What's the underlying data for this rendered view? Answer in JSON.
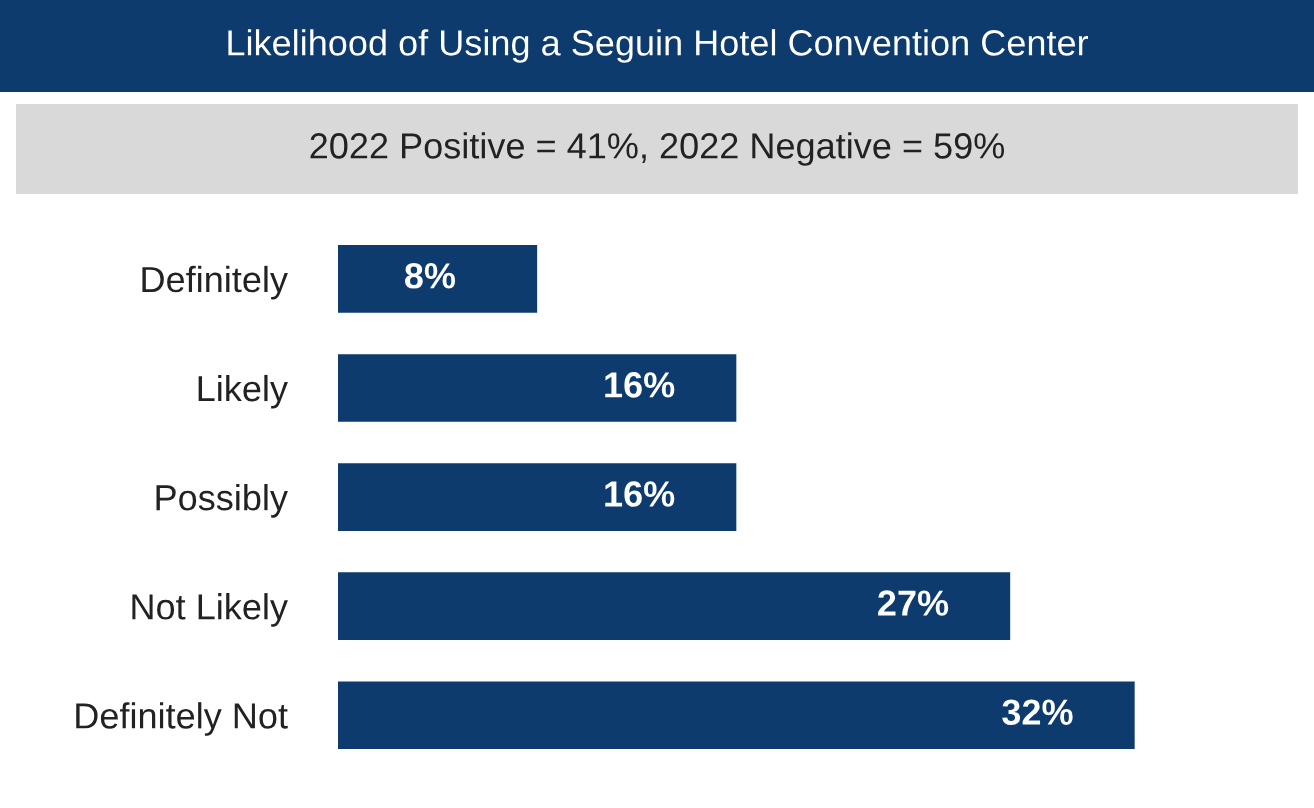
{
  "chart_data": {
    "type": "bar",
    "orientation": "horizontal",
    "title": "Likelihood of Using a Seguin Hotel Convention Center",
    "subtitle": "2022 Positive = 41%, 2022 Negative = 59%",
    "categories": [
      "Definitely",
      "Likely",
      "Possibly",
      "Not Likely",
      "Definitely Not"
    ],
    "values": [
      8,
      16,
      16,
      27,
      32
    ],
    "color": "#0d3b6e",
    "data_labels": true,
    "value_labels": [
      "8%",
      "16%",
      "16%",
      "27%",
      "32%"
    ],
    "grid": false,
    "legend": false,
    "tick_labels": "y"
  }
}
